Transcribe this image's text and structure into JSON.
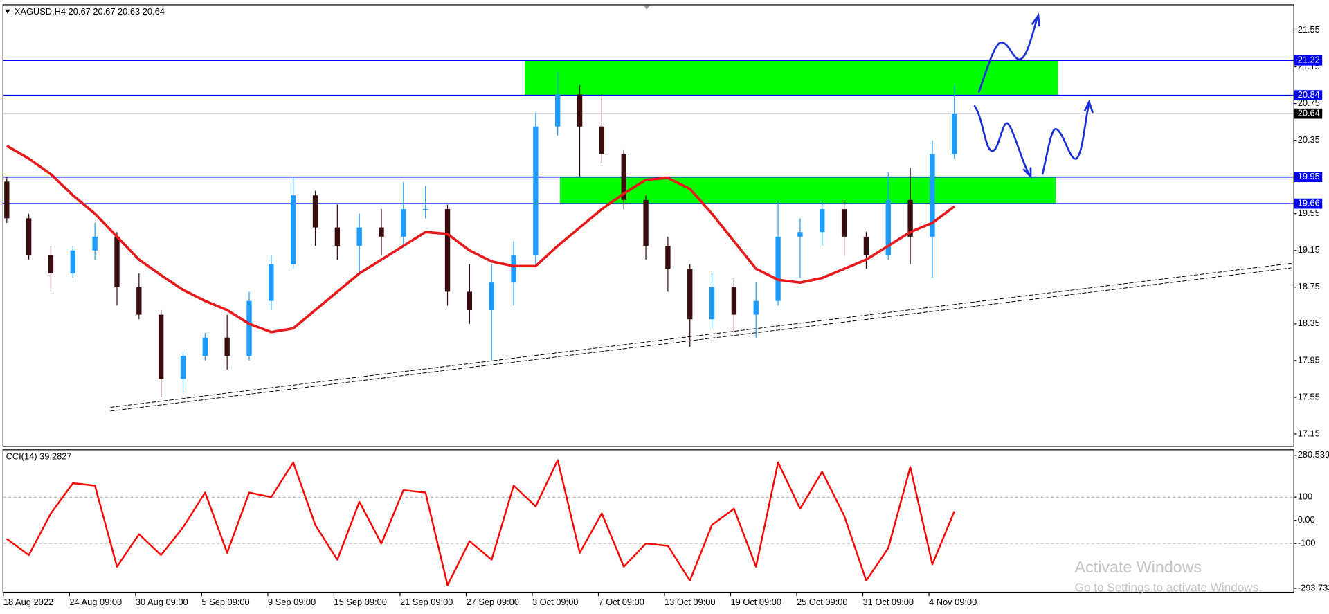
{
  "chart_data": [
    {
      "type": "candlestick",
      "title": "XAGUSD,H4  20.67 20.67 20.63 20.64",
      "categories": [
        "18 Aug 2022",
        null,
        null,
        "24 Aug 09:00",
        null,
        null,
        "30 Aug 09:00",
        null,
        null,
        "5 Sep 09:00",
        null,
        null,
        "9 Sep 09:00",
        null,
        null,
        "15 Sep 09:00",
        null,
        null,
        "21 Sep 09:00",
        null,
        null,
        "27 Sep 09:00",
        null,
        null,
        "3 Oct 09:00",
        null,
        null,
        "7 Oct 09:00",
        null,
        null,
        "13 Oct 09:00",
        null,
        null,
        "19 Oct 09:00",
        null,
        null,
        "25 Oct 09:00",
        null,
        null,
        "31 Oct 09:00",
        null,
        null,
        "4 Nov 09:00",
        null
      ],
      "open": [
        19.9,
        19.5,
        19.1,
        18.9,
        19.15,
        19.3,
        18.75,
        18.45,
        17.75,
        18.0,
        18.2,
        18.0,
        18.6,
        19.0,
        19.75,
        19.4,
        19.2,
        19.4,
        19.3,
        19.6,
        19.6,
        18.7,
        18.5,
        18.8,
        19.1,
        20.5,
        20.85,
        20.5,
        20.2,
        19.7,
        19.2,
        18.95,
        18.4,
        18.75,
        18.45,
        18.6,
        19.3,
        19.35,
        19.6,
        19.3,
        19.1,
        19.7,
        19.3,
        20.2
      ],
      "high": [
        19.95,
        19.55,
        19.2,
        19.2,
        19.45,
        19.35,
        18.9,
        18.5,
        18.05,
        18.25,
        18.45,
        18.7,
        19.1,
        19.95,
        19.8,
        19.65,
        19.55,
        19.6,
        19.9,
        19.85,
        19.65,
        19.0,
        19.0,
        19.25,
        20.65,
        21.1,
        20.95,
        20.85,
        20.25,
        19.75,
        19.3,
        19.0,
        18.9,
        18.85,
        18.8,
        19.7,
        19.5,
        19.7,
        19.7,
        19.35,
        20.0,
        20.05,
        20.35,
        20.95
      ],
      "low": [
        19.45,
        19.05,
        18.7,
        18.85,
        19.05,
        18.55,
        18.4,
        17.55,
        17.6,
        17.95,
        17.85,
        17.95,
        18.5,
        18.95,
        19.2,
        19.05,
        18.9,
        19.1,
        19.2,
        19.5,
        18.55,
        18.35,
        17.95,
        18.55,
        19.0,
        20.4,
        19.95,
        20.1,
        19.6,
        19.05,
        18.7,
        18.1,
        18.3,
        18.25,
        18.2,
        18.55,
        18.85,
        19.2,
        19.1,
        18.95,
        19.05,
        19.0,
        18.85,
        20.15
      ],
      "close": [
        19.5,
        19.1,
        18.9,
        19.15,
        19.3,
        18.75,
        18.45,
        17.75,
        18.0,
        18.2,
        18.0,
        18.6,
        19.0,
        19.75,
        19.4,
        19.2,
        19.4,
        19.3,
        19.6,
        19.6,
        18.7,
        18.5,
        18.8,
        19.1,
        20.5,
        20.85,
        20.5,
        20.2,
        19.7,
        19.2,
        18.95,
        18.4,
        18.75,
        18.45,
        18.6,
        19.3,
        19.35,
        19.6,
        19.3,
        19.1,
        19.7,
        19.3,
        20.2,
        20.64
      ],
      "up_color": "#1e9bff",
      "down_color": "#3a0d0d",
      "ylim": [
        17.01,
        21.83
      ],
      "yticks": [
        17.15,
        17.55,
        17.95,
        18.35,
        18.75,
        19.15,
        19.55,
        19.95,
        20.35,
        20.75,
        21.15,
        21.55
      ],
      "ma": {
        "color": "#e8191b",
        "values": [
          20.29,
          20.15,
          19.98,
          19.75,
          19.55,
          19.3,
          19.05,
          18.88,
          18.72,
          18.6,
          18.5,
          18.35,
          18.26,
          18.3,
          18.5,
          18.7,
          18.9,
          19.05,
          19.2,
          19.35,
          19.33,
          19.15,
          19.03,
          18.98,
          18.98,
          19.2,
          19.4,
          19.6,
          19.77,
          19.92,
          19.94,
          19.82,
          19.55,
          19.25,
          18.95,
          18.83,
          18.8,
          18.85,
          18.95,
          19.05,
          19.2,
          19.35,
          19.45,
          19.63
        ]
      },
      "levels": [
        {
          "value": 21.22,
          "color": "#0000ff"
        },
        {
          "value": 20.84,
          "color": "#0000ff"
        },
        {
          "value": 19.95,
          "color": "#0000ff"
        },
        {
          "value": 19.66,
          "color": "#0000ff"
        }
      ],
      "current": {
        "value": 20.64,
        "color": "#a0a0a0"
      },
      "zones": [
        {
          "xlim": [
            23.5,
            47.7
          ],
          "ylim": [
            20.84,
            21.22
          ],
          "color": "#00ff00"
        },
        {
          "xlim": [
            25.1,
            47.6
          ],
          "ylim": [
            19.66,
            19.95
          ],
          "color": "#00ff00"
        }
      ],
      "trendlines": [
        {
          "x": [
            4.7,
            58.3
          ],
          "y": [
            17.44,
            19.01
          ]
        },
        {
          "x": [
            4.7,
            58.3
          ],
          "y": [
            17.4,
            18.96
          ]
        }
      ]
    },
    {
      "type": "line",
      "title": "CCI(14) 39.2827",
      "color": "#ff0000",
      "values": [
        -80,
        -150,
        30,
        160,
        150,
        -200,
        -60,
        -150,
        -30,
        120,
        -140,
        120,
        100,
        250,
        -20,
        -170,
        80,
        -100,
        130,
        120,
        -280,
        -90,
        -170,
        150,
        60,
        260,
        -140,
        30,
        -200,
        -100,
        -110,
        -260,
        -20,
        50,
        -200,
        250,
        50,
        210,
        20,
        -260,
        -120,
        230,
        -190,
        39.2827
      ],
      "ylim": [
        -293.733,
        280.539
      ],
      "yticks": [
        -293.733,
        -100,
        {
          "value": 0,
          "label": "0.00"
        },
        100,
        280.539
      ],
      "levels": [
        100,
        -100
      ]
    }
  ],
  "watermark": {
    "title": "Activate Windows",
    "subtitle": "Go to Settings to activate Windows."
  }
}
